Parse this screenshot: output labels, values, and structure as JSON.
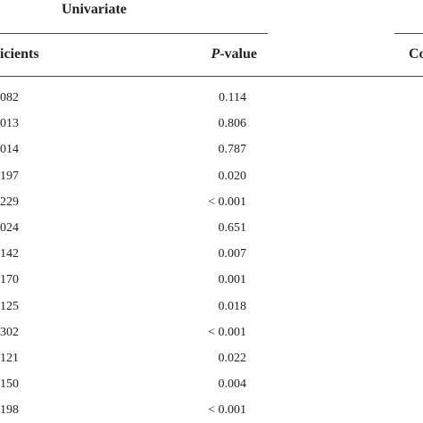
{
  "header": {
    "group_left": "Univariate",
    "col_left": "icients",
    "col_p": {
      "italic": "P",
      "rest": "-value"
    },
    "col_right": "Co"
  },
  "table": {
    "rows": [
      [
        "082",
        "0.114"
      ],
      [
        "013",
        "0.806"
      ],
      [
        "014",
        "0.787"
      ],
      [
        "197",
        "0.020"
      ],
      [
        "229",
        "< 0.001"
      ],
      [
        "024",
        "0.651"
      ],
      [
        "142",
        "0.007"
      ],
      [
        "170",
        "0.001"
      ],
      [
        "125",
        "0.018"
      ],
      [
        "302",
        "< 0.001"
      ],
      [
        "121",
        "0.022"
      ],
      [
        "150",
        "0.004"
      ],
      [
        "198",
        "< 0.001"
      ]
    ]
  }
}
